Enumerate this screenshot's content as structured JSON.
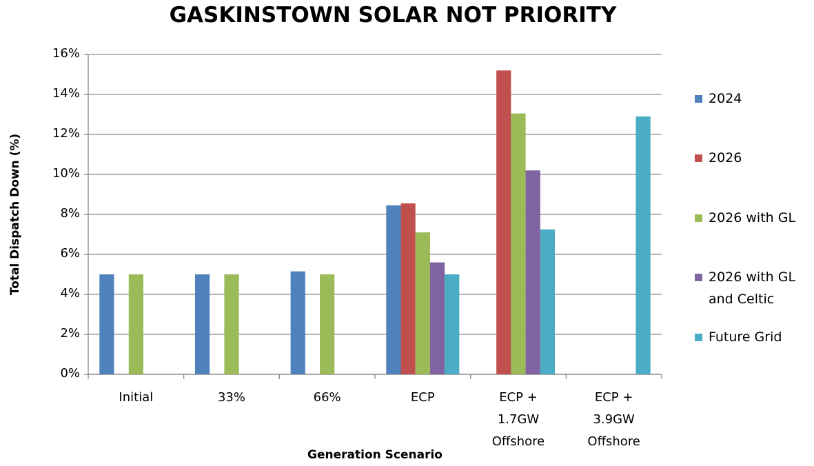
{
  "chart_data": {
    "type": "bar",
    "title": "GASKINSTOWN SOLAR NOT PRIORITY",
    "x_label": "Generation Scenario",
    "y_label": "Total Dispatch Down (%)",
    "categories": [
      "Initial",
      "33%",
      "66%",
      "ECP",
      "ECP + 1.7GW Offshore",
      "ECP + 3.9GW Offshore"
    ],
    "series": [
      {
        "name": "2024",
        "color": "#4f81bd",
        "values": [
          5.0,
          5.0,
          5.15,
          8.45,
          null,
          null
        ]
      },
      {
        "name": "2026",
        "color": "#c0504d",
        "values": [
          null,
          null,
          null,
          8.55,
          15.2,
          null
        ]
      },
      {
        "name": "2026 with GL",
        "color": "#9bbb59",
        "values": [
          5.0,
          5.0,
          5.0,
          7.1,
          13.05,
          null
        ]
      },
      {
        "name": "2026 with GL and Celtic",
        "color": "#8064a2",
        "values": [
          null,
          null,
          null,
          5.6,
          10.2,
          null
        ]
      },
      {
        "name": "Future Grid",
        "color": "#4bacc6",
        "values": [
          null,
          null,
          null,
          5.0,
          7.25,
          12.9
        ]
      }
    ],
    "ylim": [
      0,
      16
    ],
    "yticks": [
      {
        "value": 0,
        "label": "0%"
      },
      {
        "value": 2,
        "label": "2%"
      },
      {
        "value": 4,
        "label": "4%"
      },
      {
        "value": 6,
        "label": "6%"
      },
      {
        "value": 8,
        "label": "8%"
      },
      {
        "value": 10,
        "label": "10%"
      },
      {
        "value": 12,
        "label": "12%"
      },
      {
        "value": 14,
        "label": "14%"
      },
      {
        "value": 16,
        "label": "16%"
      }
    ],
    "grid": true,
    "legend": "right"
  }
}
